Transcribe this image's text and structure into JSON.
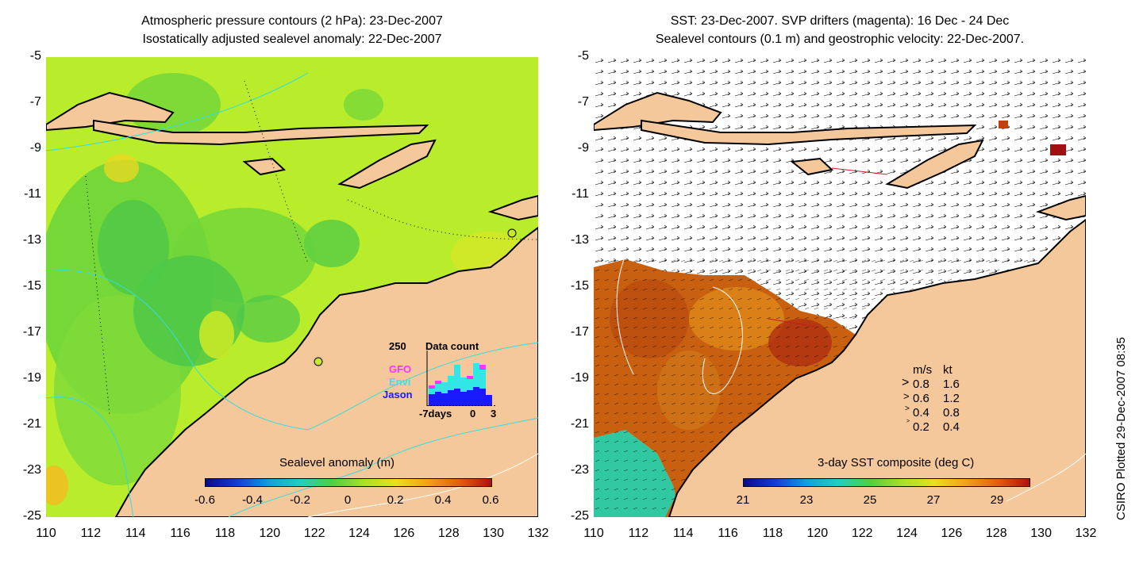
{
  "left_panel": {
    "title_line1": "Atmospheric pressure contours (2 hPa): 23-Dec-2007",
    "title_line2": "Isostatically adjusted sealevel anomaly: 22-Dec-2007",
    "colorbar_label": "Sealevel anomaly (m)",
    "colorbar_ticks": [
      "-0.6",
      "-0.4",
      "-0.2",
      "0",
      "0.2",
      "0.4",
      "0.6"
    ],
    "data_count": {
      "title": "Data count",
      "max_label": "250",
      "series": [
        "GFO",
        "Envi",
        "Jason"
      ],
      "series_colors": [
        "#ff33ff",
        "#33e6e6",
        "#1a1aff"
      ],
      "x_ticks": [
        "-7days",
        "0",
        "3"
      ]
    }
  },
  "right_panel": {
    "title_line1": "SST: 23-Dec-2007. SVP drifters (magenta): 16 Dec - 24 Dec",
    "title_line2": "Sealevel contours (0.1 m) and geostrophic velocity: 22-Dec-2007.",
    "colorbar_label": "3-day SST composite (deg C)",
    "colorbar_ticks": [
      "21",
      "23",
      "25",
      "27",
      "29"
    ],
    "velocity_legend": {
      "header_ms": "m/s",
      "header_kt": "kt",
      "rows": [
        {
          "ms": "0.8",
          "kt": "1.6"
        },
        {
          "ms": "0.6",
          "kt": "1.2"
        },
        {
          "ms": "0.4",
          "kt": "0.8"
        },
        {
          "ms": "0.2",
          "kt": "0.4"
        }
      ]
    }
  },
  "axes": {
    "y_ticks": [
      "-5",
      "-7",
      "-9",
      "-11",
      "-13",
      "-15",
      "-17",
      "-19",
      "-21",
      "-23",
      "-25"
    ],
    "x_ticks": [
      "110",
      "112",
      "114",
      "116",
      "118",
      "120",
      "122",
      "124",
      "126",
      "128",
      "130",
      "132"
    ]
  },
  "credit": "CSIRO Plotted 29-Dec-2007 08:35",
  "colors": {
    "land": "#f5c89b",
    "sea_anomaly_base": "#a8e830",
    "sea_anomaly_green": "#55d040",
    "sst_warm": "#b84010",
    "sst_cool": "#30c8a0"
  }
}
